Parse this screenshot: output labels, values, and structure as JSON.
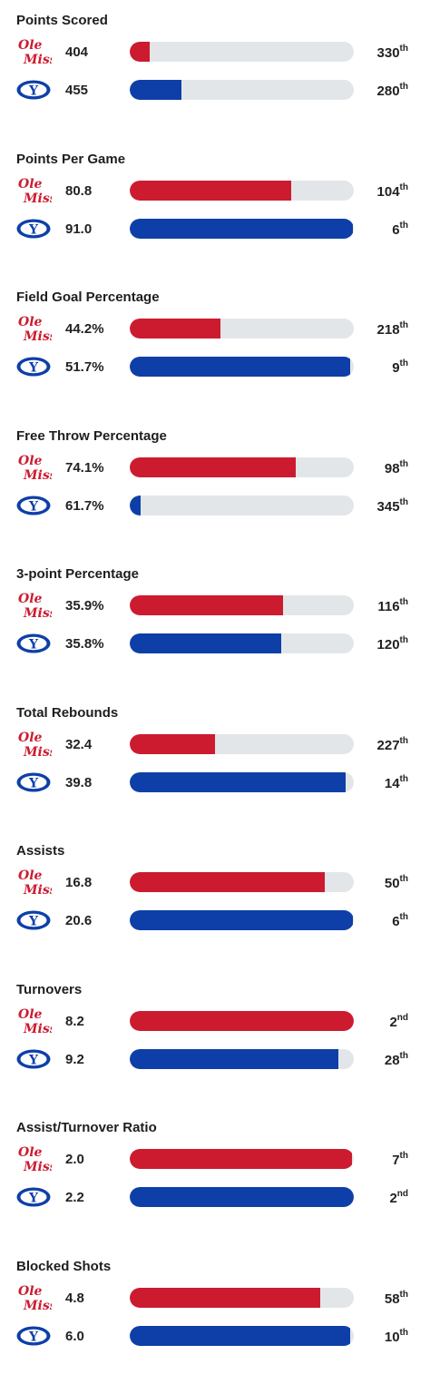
{
  "teams": {
    "ole_miss": {
      "logo_line1": "Ole",
      "logo_line2": "Miss",
      "color": "#cc1b2f"
    },
    "byu": {
      "logo_letter": "Y",
      "color": "#0e3fa8"
    }
  },
  "stats": [
    {
      "title": "Points Scored",
      "rows": [
        {
          "team": "ole_miss",
          "value": "404",
          "rank_num": "330",
          "rank_suffix": "th",
          "bar_fraction": 0.09
        },
        {
          "team": "byu",
          "value": "455",
          "rank_num": "280",
          "rank_suffix": "th",
          "bar_fraction": 0.23
        }
      ]
    },
    {
      "title": "Points Per Game",
      "rows": [
        {
          "team": "ole_miss",
          "value": "80.8",
          "rank_num": "104",
          "rank_suffix": "th",
          "bar_fraction": 0.72
        },
        {
          "team": "byu",
          "value": "91.0",
          "rank_num": "6",
          "rank_suffix": "th",
          "bar_fraction": 0.995
        }
      ]
    },
    {
      "title": "Field Goal Percentage",
      "rows": [
        {
          "team": "ole_miss",
          "value": "44.2%",
          "rank_num": "218",
          "rank_suffix": "th",
          "bar_fraction": 0.405
        },
        {
          "team": "byu",
          "value": "51.7%",
          "rank_num": "9",
          "rank_suffix": "th",
          "bar_fraction": 0.985
        }
      ]
    },
    {
      "title": "Free Throw Percentage",
      "rows": [
        {
          "team": "ole_miss",
          "value": "74.1%",
          "rank_num": "98",
          "rank_suffix": "th",
          "bar_fraction": 0.74
        },
        {
          "team": "byu",
          "value": "61.7%",
          "rank_num": "345",
          "rank_suffix": "th",
          "bar_fraction": 0.05
        }
      ]
    },
    {
      "title": "3-point Percentage",
      "rows": [
        {
          "team": "ole_miss",
          "value": "35.9%",
          "rank_num": "116",
          "rank_suffix": "th",
          "bar_fraction": 0.685
        },
        {
          "team": "byu",
          "value": "35.8%",
          "rank_num": "120",
          "rank_suffix": "th",
          "bar_fraction": 0.675
        }
      ]
    },
    {
      "title": "Total Rebounds",
      "rows": [
        {
          "team": "ole_miss",
          "value": "32.4",
          "rank_num": "227",
          "rank_suffix": "th",
          "bar_fraction": 0.38
        },
        {
          "team": "byu",
          "value": "39.8",
          "rank_num": "14",
          "rank_suffix": "th",
          "bar_fraction": 0.965
        }
      ]
    },
    {
      "title": "Assists",
      "rows": [
        {
          "team": "ole_miss",
          "value": "16.8",
          "rank_num": "50",
          "rank_suffix": "th",
          "bar_fraction": 0.87
        },
        {
          "team": "byu",
          "value": "20.6",
          "rank_num": "6",
          "rank_suffix": "th",
          "bar_fraction": 0.995
        }
      ]
    },
    {
      "title": "Turnovers",
      "rows": [
        {
          "team": "ole_miss",
          "value": "8.2",
          "rank_num": "2",
          "rank_suffix": "nd",
          "bar_fraction": 1.0
        },
        {
          "team": "byu",
          "value": "9.2",
          "rank_num": "28",
          "rank_suffix": "th",
          "bar_fraction": 0.93
        }
      ]
    },
    {
      "title": "Assist/Turnover Ratio",
      "rows": [
        {
          "team": "ole_miss",
          "value": "2.0",
          "rank_num": "7",
          "rank_suffix": "th",
          "bar_fraction": 0.99
        },
        {
          "team": "byu",
          "value": "2.2",
          "rank_num": "2",
          "rank_suffix": "nd",
          "bar_fraction": 1.0
        }
      ]
    },
    {
      "title": "Blocked Shots",
      "rows": [
        {
          "team": "ole_miss",
          "value": "4.8",
          "rank_num": "58",
          "rank_suffix": "th",
          "bar_fraction": 0.85
        },
        {
          "team": "byu",
          "value": "6.0",
          "rank_num": "10",
          "rank_suffix": "th",
          "bar_fraction": 0.985
        }
      ]
    }
  ]
}
